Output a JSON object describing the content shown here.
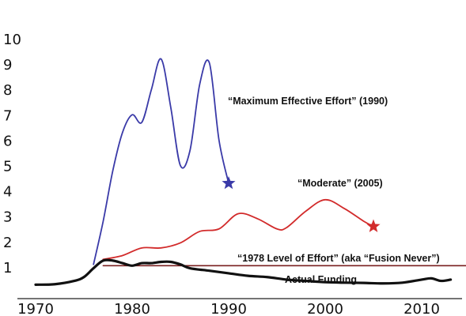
{
  "chart_data": {
    "type": "line",
    "title": "",
    "xlabel": "",
    "ylabel": "",
    "xlim": [
      1970,
      2015
    ],
    "ylim": [
      0,
      10
    ],
    "x_ticks": [
      "1970",
      "1980",
      "1990",
      "2000",
      "2010"
    ],
    "y_ticks": [
      "1",
      "2",
      "3",
      "4",
      "5",
      "6",
      "7",
      "8",
      "9",
      "10"
    ],
    "grid": false,
    "series": [
      {
        "name": "“Maximum Effective Effort” (1990)",
        "color": "#3a3aa8",
        "marker_end": "star",
        "x": [
          1976,
          1977,
          1978,
          1979,
          1980,
          1981,
          1982,
          1983,
          1984,
          1985,
          1986,
          1987,
          1988,
          1989,
          1990
        ],
        "y": [
          1.1,
          2.8,
          4.8,
          6.3,
          7.0,
          6.7,
          8.0,
          9.2,
          7.3,
          5.0,
          5.6,
          8.2,
          9.05,
          6.0,
          4.3
        ]
      },
      {
        "name": "“Moderate” (2005)",
        "color": "#d22b2b",
        "marker_end": "star",
        "x": [
          1977,
          1979,
          1981,
          1983,
          1985,
          1987,
          1989,
          1991,
          1993,
          1995,
          1996,
          1998,
          2000,
          2002,
          2004,
          2005
        ],
        "y": [
          1.3,
          1.45,
          1.75,
          1.75,
          1.95,
          2.4,
          2.5,
          3.1,
          2.9,
          2.5,
          2.55,
          3.2,
          3.65,
          3.3,
          2.8,
          2.6
        ]
      },
      {
        "name": "“1978 Level of Effort” (aka “Fusion Never”)",
        "color": "#7a1f1f",
        "x": [
          1977,
          2015
        ],
        "y": [
          1.05,
          1.05
        ]
      },
      {
        "name": "Actual Funding",
        "color": "#111111",
        "x": [
          1970,
          1972,
          1974,
          1975,
          1976,
          1977,
          1978,
          1979,
          1980,
          1981,
          1982,
          1983,
          1984,
          1985,
          1986,
          1988,
          1990,
          1992,
          1994,
          1996,
          1998,
          2000,
          2002,
          2004,
          2006,
          2008,
          2010,
          2011,
          2012,
          2013
        ],
        "y": [
          0.3,
          0.32,
          0.45,
          0.6,
          0.95,
          1.25,
          1.25,
          1.15,
          1.05,
          1.15,
          1.15,
          1.2,
          1.2,
          1.1,
          0.95,
          0.85,
          0.75,
          0.65,
          0.6,
          0.5,
          0.45,
          0.4,
          0.38,
          0.37,
          0.35,
          0.38,
          0.5,
          0.55,
          0.45,
          0.5
        ]
      }
    ],
    "annotations": [
      "“Maximum Effective Effort” (1990)",
      "“Moderate” (2005)",
      "“1978 Level of Effort” (aka “Fusion Never”)",
      "Actual Funding"
    ]
  }
}
